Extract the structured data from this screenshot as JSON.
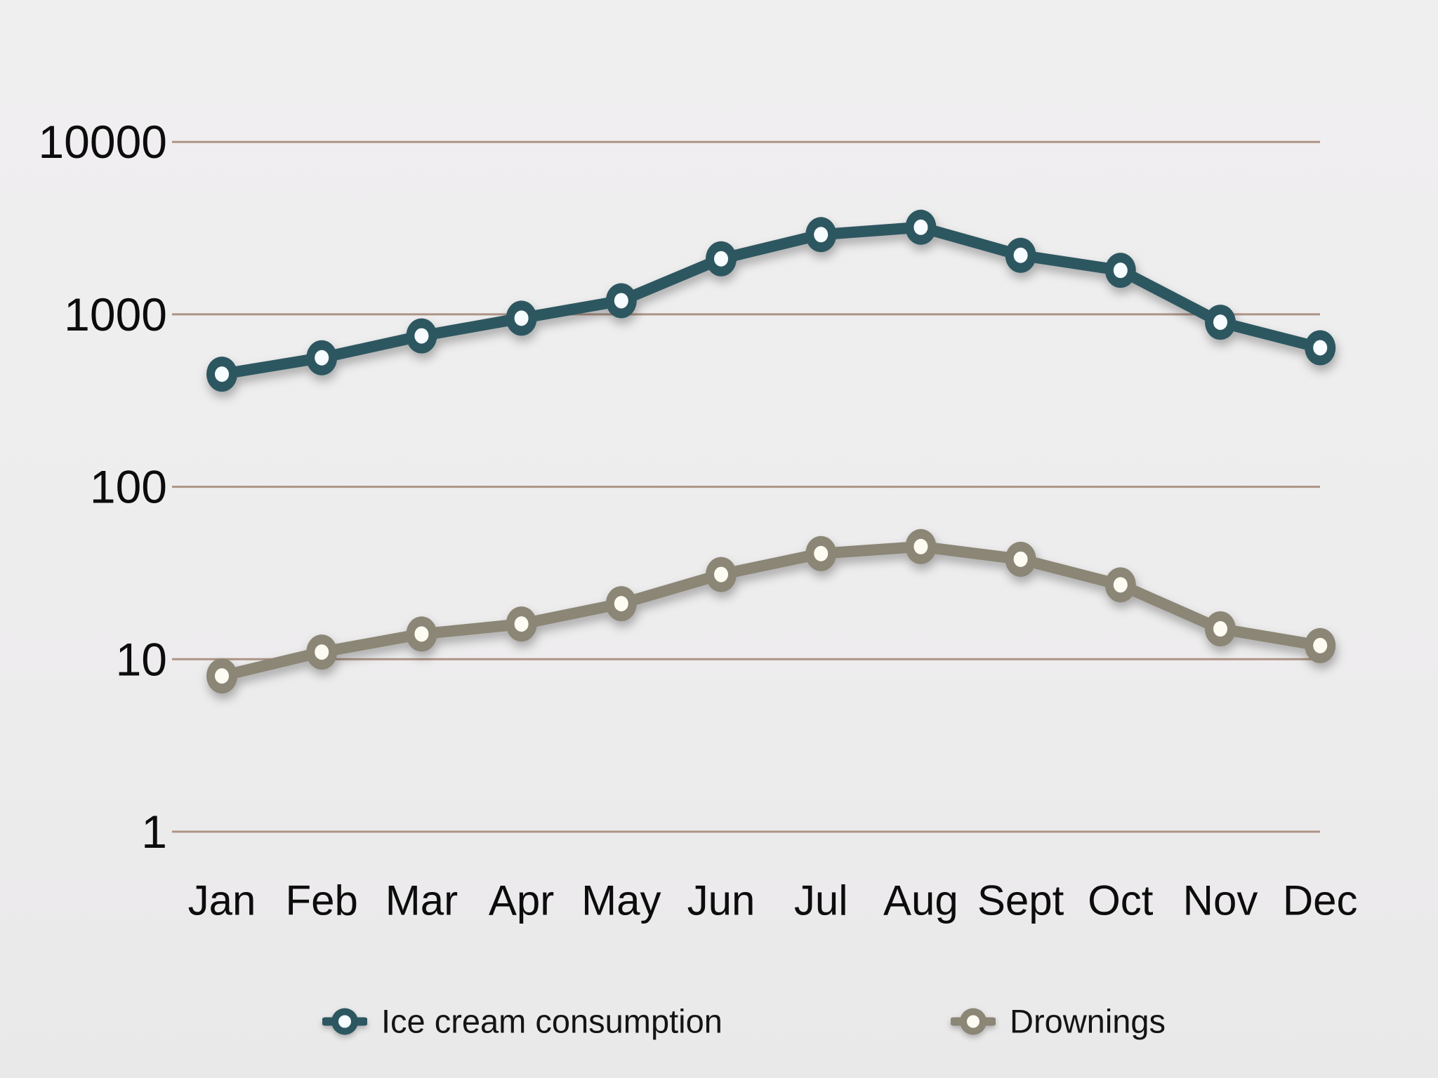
{
  "chart_data": {
    "type": "line",
    "title": "",
    "xlabel": "",
    "ylabel": "",
    "categories": [
      "Jan",
      "Feb",
      "Mar",
      "Apr",
      "May",
      "Jun",
      "Jul",
      "Aug",
      "Sept",
      "Oct",
      "Nov",
      "Dec"
    ],
    "series": [
      {
        "name": "Ice cream consumption",
        "color": "#2d5760",
        "marker_center": "#f6fcff",
        "values": [
          450,
          560,
          750,
          950,
          1200,
          2100,
          2900,
          3200,
          2200,
          1800,
          900,
          640
        ]
      },
      {
        "name": "Drownings",
        "color": "#8b8675",
        "marker_center": "#fdfbf2",
        "values": [
          8,
          11,
          14,
          16,
          21,
          31,
          41,
          45,
          38,
          27,
          15,
          12
        ]
      }
    ],
    "yscale": "log",
    "ylim": [
      1,
      10000
    ],
    "yticks": [
      "10000",
      "1000",
      "100",
      "10",
      "1"
    ],
    "ytick_values": [
      10000,
      1000,
      100,
      10,
      1
    ],
    "grid": true,
    "gridline_color": "#ae9486",
    "label_color": "#0c0c0c",
    "background_color": "#eeedee",
    "legend_position": "bottom",
    "marker_style": "circle-with-white-center"
  }
}
